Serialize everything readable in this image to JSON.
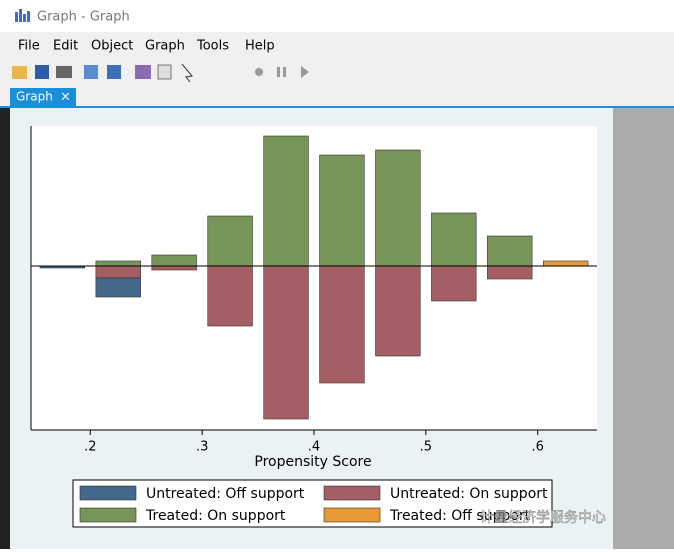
{
  "window": {
    "title": "Graph - Graph",
    "menu": [
      "File",
      "Edit",
      "Object",
      "Graph",
      "Tools",
      "Help"
    ],
    "tab": "Graph",
    "tab_close": "×"
  },
  "chart_data": {
    "type": "bar",
    "x": [
      0.175,
      0.225,
      0.275,
      0.325,
      0.375,
      0.425,
      0.475,
      0.525,
      0.575,
      0.625
    ],
    "series": [
      {
        "name": "Untreated: Off support",
        "color": "#44678c",
        "values": [
          -2,
          -19,
          null,
          null,
          null,
          null,
          null,
          null,
          null,
          null
        ]
      },
      {
        "name": "Untreated: On support",
        "color": "#a55e64",
        "values": [
          null,
          -12,
          -4,
          -60,
          -153,
          -117,
          -90,
          -35,
          -13,
          null
        ]
      },
      {
        "name": "Treated: On support",
        "color": "#78955a",
        "values": [
          null,
          5,
          11,
          50,
          130,
          111,
          116,
          53,
          30,
          null
        ]
      },
      {
        "name": "Treated: Off support",
        "color": "#e89a34",
        "values": [
          null,
          null,
          null,
          null,
          null,
          null,
          null,
          null,
          null,
          5
        ]
      }
    ],
    "bar_width": 0.04,
    "xlabel": "Propensity Score",
    "xlim": [
      0.147,
      0.653
    ],
    "ylim": [
      -164,
      140
    ],
    "xticks": [
      {
        "value": 0.2,
        "label": ".2"
      },
      {
        "value": 0.3,
        "label": ".3"
      },
      {
        "value": 0.4,
        "label": ".4"
      },
      {
        "value": 0.5,
        "label": ".5"
      },
      {
        "value": 0.6,
        "label": ".6"
      }
    ],
    "watermark": "计量经济学服务中心"
  }
}
